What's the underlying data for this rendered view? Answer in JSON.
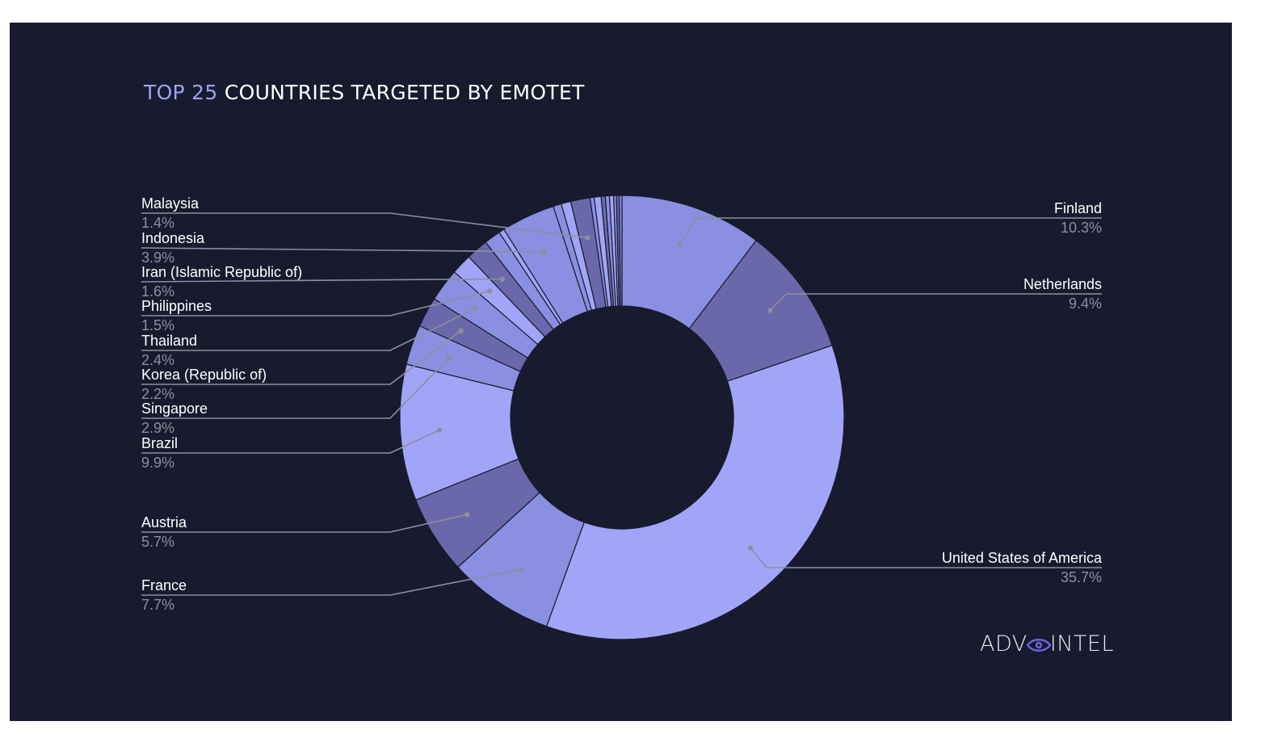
{
  "title": {
    "highlight": "TOP 25",
    "rest": "COUNTRIES TARGETED BY EMOTET"
  },
  "logo": {
    "left": "ADV",
    "right": "INTEL"
  },
  "colors": {
    "background": "#181b2e",
    "title_highlight": "#9fa3f2",
    "slice_light": "#a2a5f7",
    "slice_mid": "#8a8fe2",
    "slice_dark": "#6a68aa",
    "leader_line": "#8d8f9c"
  },
  "chart_data": {
    "type": "pie",
    "donut": true,
    "unit": "%",
    "slices": [
      {
        "label": "Finland",
        "value": 10.3,
        "value_label": "10.3%",
        "color": "#8a8fe2"
      },
      {
        "label": "Netherlands",
        "value": 9.4,
        "value_label": "9.4%",
        "color": "#6a68aa"
      },
      {
        "label": "United States of America",
        "value": 35.7,
        "value_label": "35.7%",
        "color": "#a2a5f7"
      },
      {
        "label": "France",
        "value": 7.7,
        "value_label": "7.7%",
        "color": "#8a8fe2"
      },
      {
        "label": "Austria",
        "value": 5.7,
        "value_label": "5.7%",
        "color": "#6a68aa"
      },
      {
        "label": "Brazil",
        "value": 9.9,
        "value_label": "9.9%",
        "color": "#a2a5f7"
      },
      {
        "label": "Singapore",
        "value": 2.9,
        "value_label": "2.9%",
        "color": "#8a8fe2"
      },
      {
        "label": "Korea (Republic of)",
        "value": 2.2,
        "value_label": "2.2%",
        "color": "#6a68aa"
      },
      {
        "label": "Thailand",
        "value": 2.4,
        "value_label": "2.4%",
        "color": "#8a8fe2"
      },
      {
        "label": "Philippines",
        "value": 1.5,
        "value_label": "1.5%",
        "color": "#a2a5f7"
      },
      {
        "label": "Iran (Islamic Republic of)",
        "value": 1.6,
        "value_label": "1.6%",
        "color": "#6a68aa"
      },
      {
        "label": "",
        "value": 1.2,
        "value_label": "",
        "color": "#8a8fe2"
      },
      {
        "label": "",
        "value": 0.4,
        "value_label": "",
        "color": "#a2a5f7"
      },
      {
        "label": "Indonesia",
        "value": 3.9,
        "value_label": "3.9%",
        "color": "#8a8fe2"
      },
      {
        "label": "",
        "value": 0.6,
        "value_label": "",
        "color": "#8a8fe2"
      },
      {
        "label": "",
        "value": 0.7,
        "value_label": "",
        "color": "#a2a5f7"
      },
      {
        "label": "Malaysia",
        "value": 1.4,
        "value_label": "1.4%",
        "color": "#6a68aa"
      },
      {
        "label": "",
        "value": 0.3,
        "value_label": "",
        "color": "#8a8fe2"
      },
      {
        "label": "",
        "value": 0.5,
        "value_label": "",
        "color": "#a2a5f7"
      },
      {
        "label": "",
        "value": 0.3,
        "value_label": "",
        "color": "#6a68aa"
      },
      {
        "label": "",
        "value": 0.3,
        "value_label": "",
        "color": "#8a8fe2"
      },
      {
        "label": "",
        "value": 0.3,
        "value_label": "",
        "color": "#a2a5f7"
      },
      {
        "label": "",
        "value": 0.2,
        "value_label": "",
        "color": "#8a8fe2"
      },
      {
        "label": "",
        "value": 0.2,
        "value_label": "",
        "color": "#6a68aa"
      },
      {
        "label": "",
        "value": 0.2,
        "value_label": "",
        "color": "#8a8fe2"
      }
    ]
  }
}
